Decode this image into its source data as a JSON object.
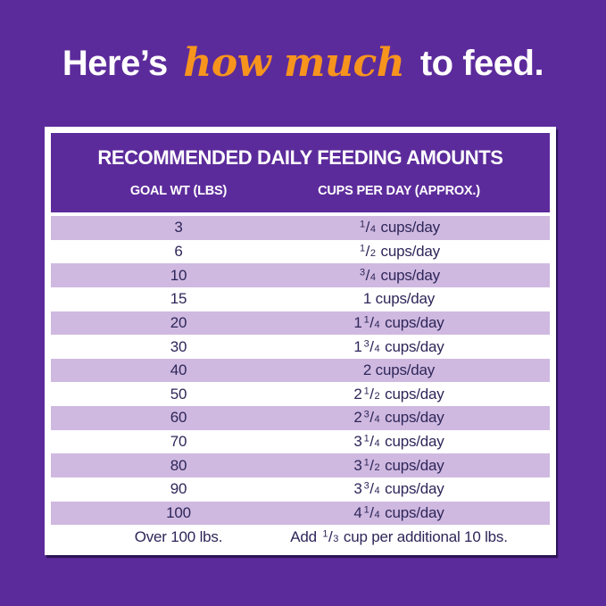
{
  "colors": {
    "background": "#5C2B9B",
    "header_block": "#5C2B9B",
    "row_stripe": "#CFB9E0",
    "row_plain": "#FFFFFF",
    "card_background": "#FFFFFF",
    "table_text": "#2E2659",
    "heading_text": "#FFFFFF",
    "heading_accent": "#F7941E"
  },
  "heading": {
    "part1": "Here’s",
    "highlight": "how much",
    "part2": "to feed."
  },
  "table": {
    "title": "RECOMMENDED DAILY FEEDING AMOUNTS",
    "columns": [
      "GOAL WT (LBS)",
      "CUPS PER DAY (APPROX.)"
    ],
    "rows": [
      {
        "goal": "3",
        "cups": {
          "num": "1",
          "den": "4",
          "post": " cups/day"
        }
      },
      {
        "goal": "6",
        "cups": {
          "num": "1",
          "den": "2",
          "post": " cups/day"
        }
      },
      {
        "goal": "10",
        "cups": {
          "num": "3",
          "den": "4",
          "post": " cups/day"
        }
      },
      {
        "goal": "15",
        "cups": {
          "whole": "1",
          "post": " cups/day"
        }
      },
      {
        "goal": "20",
        "cups": {
          "whole": "1",
          "num": "1",
          "den": "4",
          "post": " cups/day"
        }
      },
      {
        "goal": "30",
        "cups": {
          "whole": "1",
          "num": "3",
          "den": "4",
          "post": " cups/day"
        }
      },
      {
        "goal": "40",
        "cups": {
          "whole": "2",
          "post": " cups/day"
        }
      },
      {
        "goal": "50",
        "cups": {
          "whole": "2",
          "num": "1",
          "den": "2",
          "post": " cups/day"
        }
      },
      {
        "goal": "60",
        "cups": {
          "whole": "2",
          "num": "3",
          "den": "4",
          "post": " cups/day"
        }
      },
      {
        "goal": "70",
        "cups": {
          "whole": "3",
          "num": "1",
          "den": "4",
          "post": " cups/day"
        }
      },
      {
        "goal": "80",
        "cups": {
          "whole": "3",
          "num": "1",
          "den": "2",
          "post": " cups/day"
        }
      },
      {
        "goal": "90",
        "cups": {
          "whole": "3",
          "num": "3",
          "den": "4",
          "post": " cups/day"
        }
      },
      {
        "goal": "100",
        "cups": {
          "whole": "4",
          "num": "1",
          "den": "4",
          "post": " cups/day"
        }
      },
      {
        "goal": "Over 100 lbs.",
        "cups": {
          "pre": "Add ",
          "num": "1",
          "den": "3",
          "post": " cup per additional 10 lbs."
        }
      }
    ]
  },
  "chart_data": {
    "type": "table",
    "title": "RECOMMENDED DAILY FEEDING AMOUNTS",
    "columns": [
      "GOAL WT (LBS)",
      "CUPS PER DAY (APPROX.)"
    ],
    "rows": [
      [
        "3",
        "¼ cups/day"
      ],
      [
        "6",
        "½ cups/day"
      ],
      [
        "10",
        "¾ cups/day"
      ],
      [
        "15",
        "1 cups/day"
      ],
      [
        "20",
        "1¼ cups/day"
      ],
      [
        "30",
        "1¾ cups/day"
      ],
      [
        "40",
        "2 cups/day"
      ],
      [
        "50",
        "2½ cups/day"
      ],
      [
        "60",
        "2¾ cups/day"
      ],
      [
        "70",
        "3¼ cups/day"
      ],
      [
        "80",
        "3½ cups/day"
      ],
      [
        "90",
        "3¾ cups/day"
      ],
      [
        "100",
        "4¼ cups/day"
      ],
      [
        "Over 100 lbs.",
        "Add ⅓ cup per additional 10 lbs."
      ]
    ],
    "goal_weights_lbs": [
      3,
      6,
      10,
      15,
      20,
      30,
      40,
      50,
      60,
      70,
      80,
      90,
      100
    ],
    "cups_per_day": [
      0.25,
      0.5,
      0.75,
      1,
      1.25,
      1.75,
      2,
      2.5,
      2.75,
      3.25,
      3.5,
      3.75,
      4.25
    ],
    "over_100_rule": "Add 1/3 cup per additional 10 lbs."
  }
}
